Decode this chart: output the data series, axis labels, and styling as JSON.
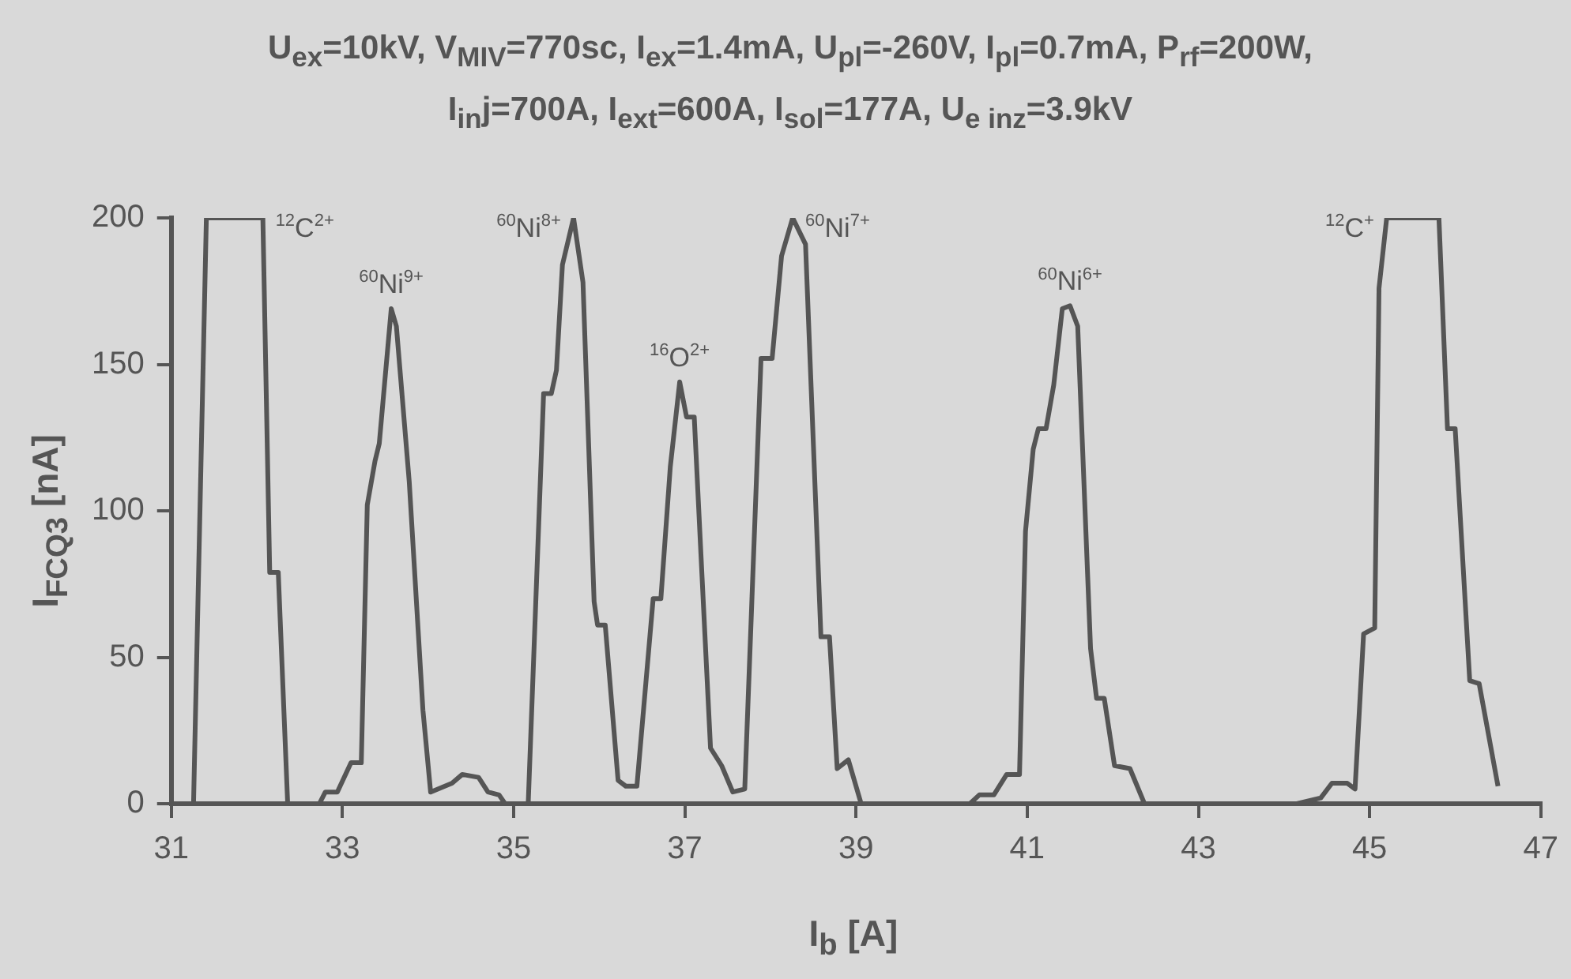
{
  "chart_data": {
    "type": "line",
    "title": "U$_{ex}$=10kV, V$_{MIV}$=770sc, I$_{ex}$=1.4mA, U$_{pl}$=-260V, I$_{pl}$=0.7mA, P$_{rf}$=200W, I$_{in}$j=700A, I$_{ext}$=600A, I$_{sol}$=177A, U$_{e inz}$=3.9kV",
    "xlabel": "I$_{b}$ [A]",
    "ylabel": "I$_{FCQ3}$ [nA]",
    "series": [
      {
        "color": "#555555",
        "x": [
          31.26,
          31.41,
          32.07,
          32.15,
          32.25,
          32.36,
          32.73,
          32.8,
          32.94,
          33.1,
          33.22,
          33.29,
          33.38,
          33.43,
          33.57,
          33.63,
          33.78,
          33.94,
          34.03,
          34.28,
          34.4,
          34.59,
          34.7,
          34.83,
          34.9,
          35.17,
          35.35,
          35.44,
          35.5,
          35.57,
          35.7,
          35.81,
          35.94,
          35.98,
          36.07,
          36.22,
          36.31,
          36.44,
          36.63,
          36.72,
          36.83,
          36.94,
          37.02,
          37.11,
          37.19,
          37.3,
          37.43,
          37.56,
          37.7,
          37.89,
          38.02,
          38.13,
          38.26,
          38.41,
          38.59,
          38.69,
          38.78,
          38.91,
          39.06,
          40.33,
          40.44,
          40.61,
          40.76,
          40.91,
          40.98,
          41.07,
          41.13,
          41.22,
          41.31,
          41.41,
          41.5,
          41.59,
          41.74,
          41.81,
          41.9,
          42.02,
          42.2,
          42.37,
          44.15,
          44.43,
          44.56,
          44.74,
          44.83,
          44.93,
          45.06,
          45.11,
          45.2,
          45.81,
          45.91,
          46.0,
          46.17,
          46.28,
          46.5
        ],
        "values": [
          0,
          200,
          200,
          79,
          79,
          0,
          0,
          4,
          4,
          14,
          14,
          102,
          117,
          123,
          169,
          163,
          110,
          32,
          4,
          7,
          10,
          9,
          4,
          3,
          0,
          0,
          140,
          140,
          148,
          184,
          200,
          178,
          69,
          61,
          61,
          8,
          6,
          6,
          70,
          70,
          115,
          144,
          132,
          132,
          84,
          19,
          13,
          4,
          5,
          152,
          152,
          187,
          200,
          191,
          57,
          57,
          12,
          15,
          0,
          0,
          3,
          3,
          10,
          10,
          93,
          121,
          128,
          128,
          143,
          169,
          170,
          163,
          53,
          36,
          36,
          13,
          12,
          0,
          0,
          2,
          7,
          7,
          5,
          58,
          60,
          176,
          200,
          200,
          128,
          128,
          42,
          41,
          6
        ]
      }
    ],
    "xlim": [
      31,
      47
    ],
    "xticks": [
      31,
      33,
      35,
      37,
      39,
      41,
      43,
      45,
      47
    ],
    "ylim": [
      0,
      200
    ],
    "yticks": [
      0,
      50,
      100,
      150,
      200
    ],
    "grid": false,
    "legend": false,
    "marker": "none",
    "line_style": "solid",
    "annotations": [
      {
        "text": "$^{12}$C$^{2+}$",
        "x": 32.07,
        "y": 200
      },
      {
        "text": "$^{60}$Ni$^{9+}$",
        "x": 33.57,
        "y": 169
      },
      {
        "text": "$^{60}$Ni$^{8+}$",
        "x": 35.7,
        "y": 200
      },
      {
        "text": "$^{16}$O$^{2+}$",
        "x": 36.94,
        "y": 144
      },
      {
        "text": "$^{60}$Ni$^{7+}$",
        "x": 38.26,
        "y": 200
      },
      {
        "text": "$^{60}$Ni$^{6+}$",
        "x": 41.5,
        "y": 170
      },
      {
        "text": "$^{12}$C$^{+}$",
        "x": 45.2,
        "y": 200
      }
    ]
  }
}
